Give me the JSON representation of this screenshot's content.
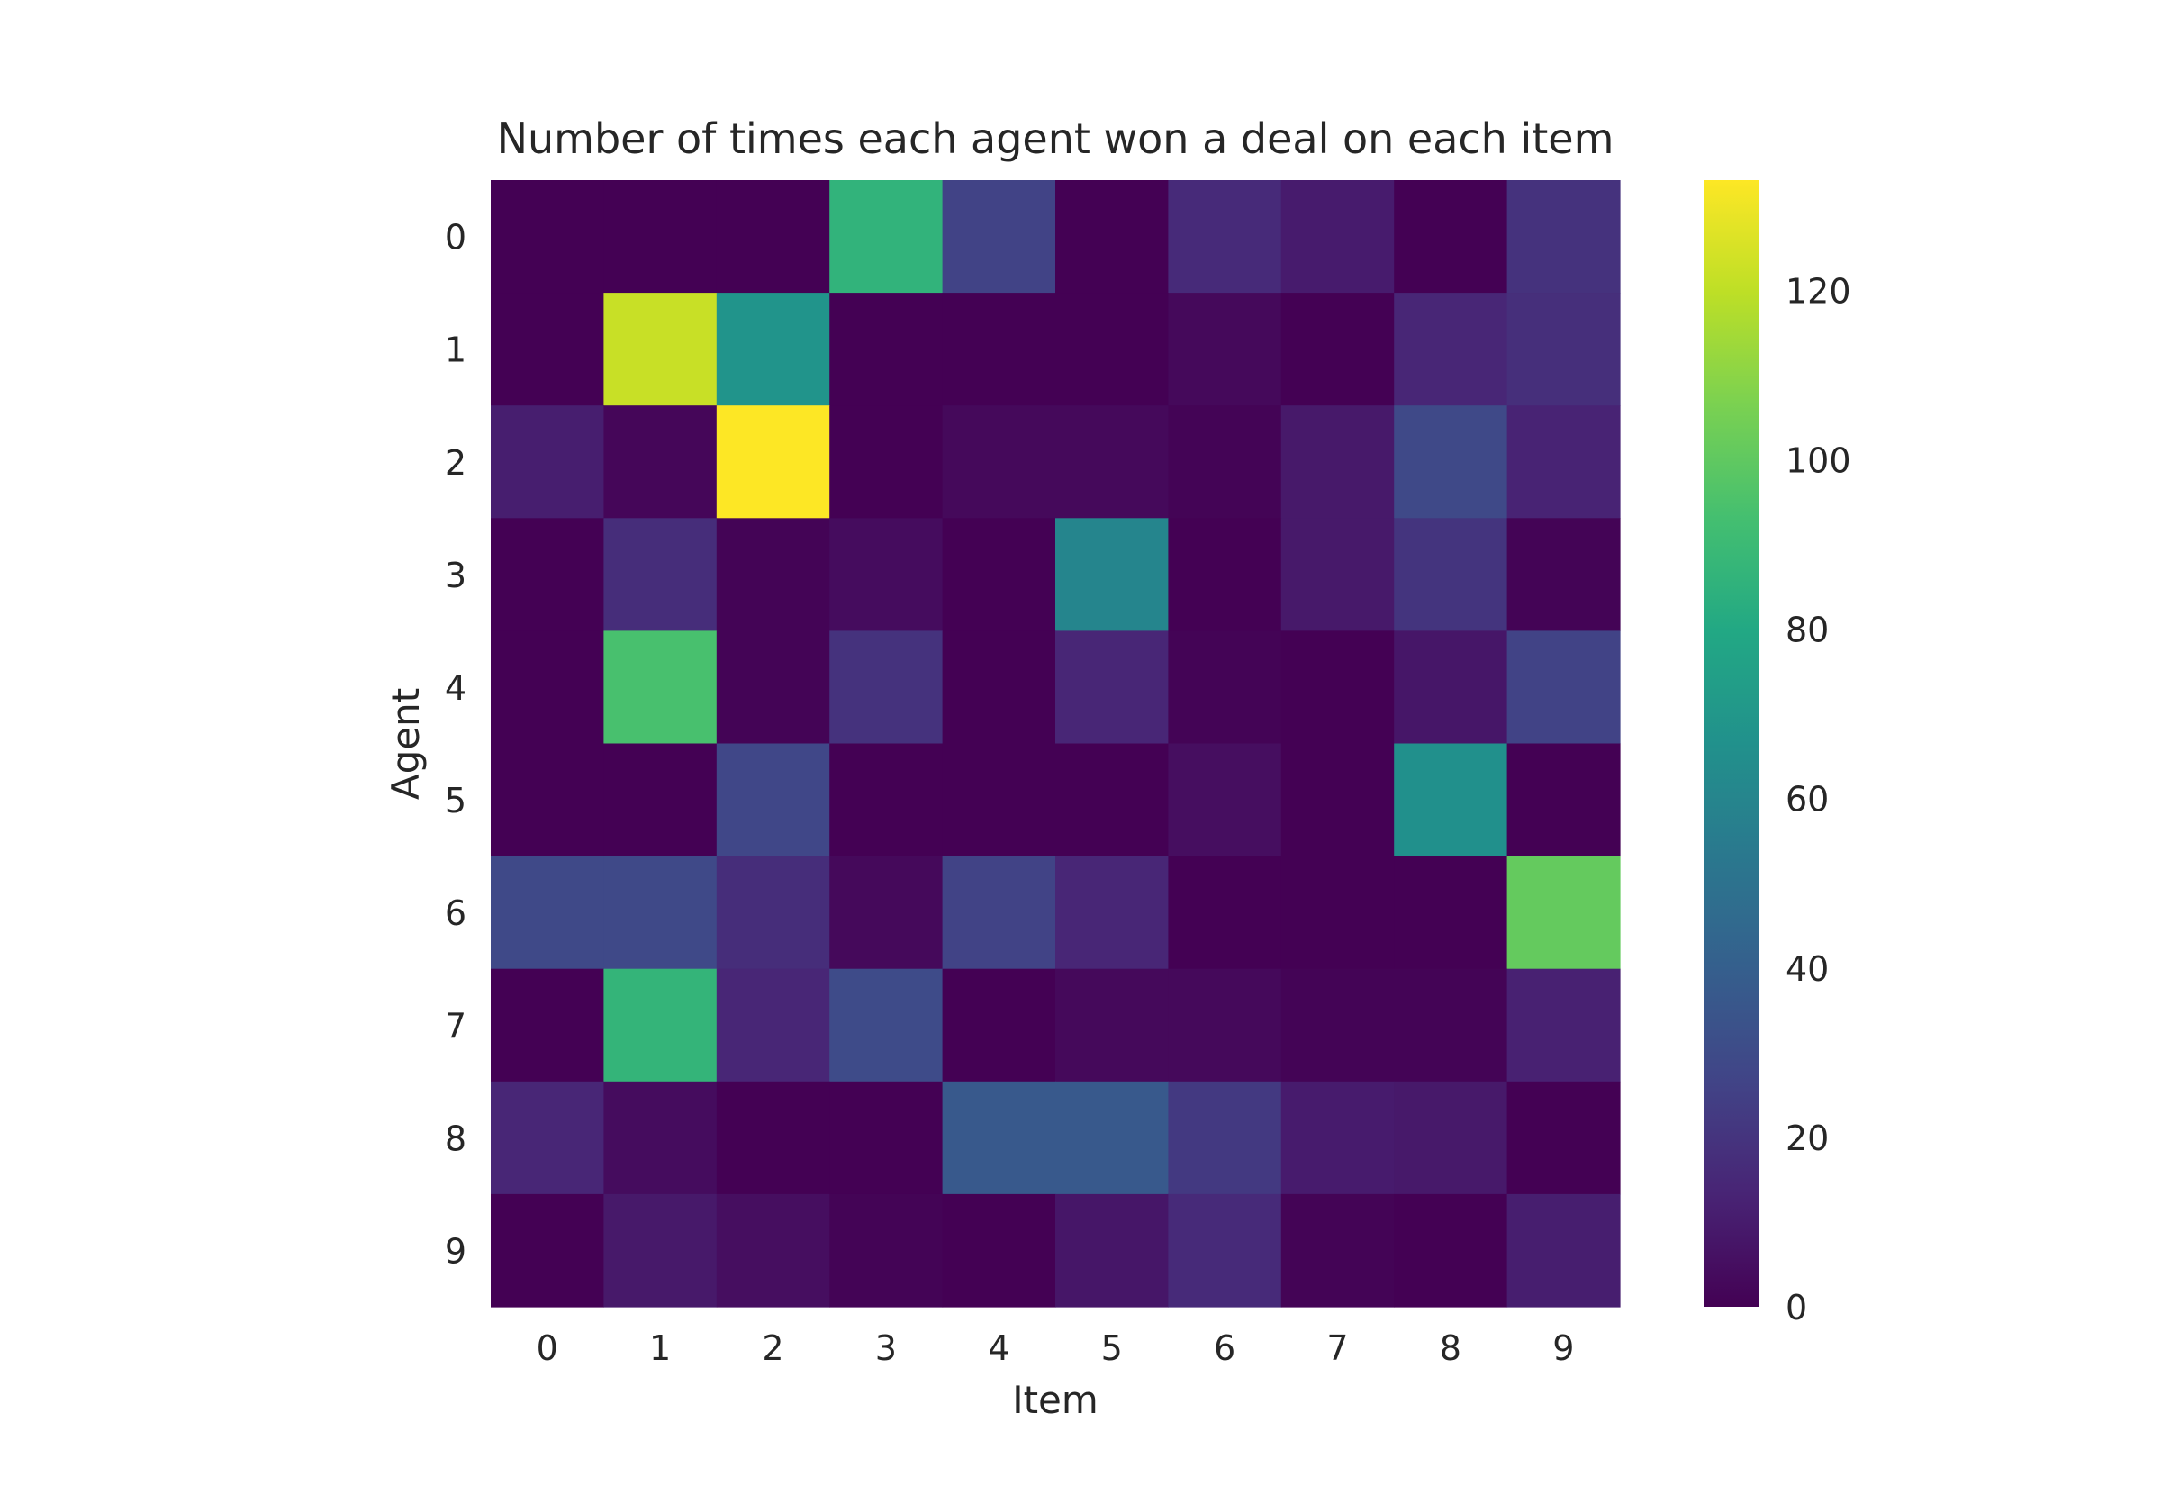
{
  "chart_data": {
    "type": "heatmap",
    "title": "Number of times each agent won a deal on each item",
    "xlabel": "Item",
    "ylabel": "Agent",
    "x": [
      "0",
      "1",
      "2",
      "3",
      "4",
      "5",
      "6",
      "7",
      "8",
      "9"
    ],
    "y": [
      "0",
      "1",
      "2",
      "3",
      "4",
      "5",
      "6",
      "7",
      "8",
      "9"
    ],
    "values": [
      [
        0,
        0,
        0,
        86,
        26,
        0,
        16,
        10,
        0,
        19
      ],
      [
        0,
        122,
        68,
        0,
        0,
        0,
        3,
        0,
        14,
        18
      ],
      [
        11,
        2,
        133,
        0,
        3,
        3,
        1,
        9,
        29,
        13
      ],
      [
        0,
        17,
        1,
        4,
        0,
        60,
        0,
        9,
        20,
        1
      ],
      [
        0,
        94,
        1,
        19,
        0,
        14,
        1,
        0,
        8,
        26
      ],
      [
        0,
        0,
        28,
        0,
        0,
        0,
        5,
        0,
        66,
        0
      ],
      [
        29,
        29,
        17,
        3,
        26,
        14,
        0,
        0,
        0,
        101
      ],
      [
        0,
        87,
        14,
        30,
        0,
        3,
        3,
        1,
        1,
        12
      ],
      [
        14,
        4,
        0,
        0,
        37,
        37,
        22,
        10,
        9,
        0
      ],
      [
        0,
        9,
        5,
        1,
        0,
        8,
        16,
        1,
        0,
        11
      ]
    ],
    "colorbar": {
      "colormap": "viridis",
      "range": [
        0,
        133
      ],
      "ticks": [
        "0",
        "20",
        "40",
        "60",
        "80",
        "100",
        "120"
      ]
    },
    "grid": false
  }
}
